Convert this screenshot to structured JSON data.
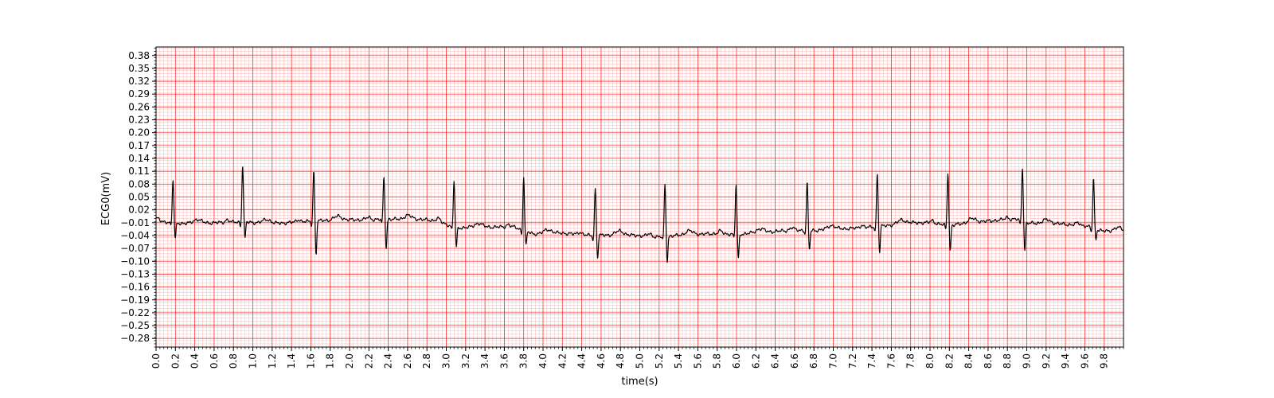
{
  "chart_data": {
    "type": "line",
    "xlabel": "time(s)",
    "ylabel": "ECG0(mV)",
    "xlim": [
      0.0,
      10.0
    ],
    "ylim": [
      -0.3,
      0.4
    ],
    "x_ticks": [
      "0.0",
      "0.2",
      "0.4",
      "0.6",
      "0.8",
      "1.0",
      "1.2",
      "1.4",
      "1.6",
      "1.8",
      "2.0",
      "2.2",
      "2.4",
      "2.6",
      "2.8",
      "3.0",
      "3.2",
      "3.4",
      "3.6",
      "3.8",
      "4.0",
      "4.2",
      "4.4",
      "4.6",
      "4.8",
      "5.0",
      "5.2",
      "5.4",
      "5.6",
      "5.8",
      "6.0",
      "6.2",
      "6.4",
      "6.6",
      "6.8",
      "7.0",
      "7.2",
      "7.4",
      "7.6",
      "7.8",
      "8.0",
      "8.2",
      "8.4",
      "8.6",
      "8.8",
      "9.0",
      "9.2",
      "9.4",
      "9.6",
      "9.8"
    ],
    "y_ticks": [
      "0.38",
      "0.35",
      "0.32",
      "0.29",
      "0.26",
      "0.23",
      "0.20",
      "0.17",
      "0.14",
      "0.11",
      "0.08",
      "0.05",
      "0.02",
      "−0.01",
      "−0.04",
      "−0.07",
      "−0.10",
      "−0.13",
      "−0.16",
      "−0.19",
      "−0.22",
      "−0.25",
      "−0.28"
    ],
    "grid": {
      "major_x_step_s": 0.2,
      "minor_x_step_s": 0.04,
      "major_y_step_mV": 0.03,
      "minor_y_step_mV": 0.0075,
      "color": "#ff0000"
    },
    "sampling_rate_hz": 250,
    "series": [
      {
        "color": "#000000",
        "beats": [
          {
            "t": 0.175,
            "amp": 0.098,
            "s": -0.038
          },
          {
            "t": 0.895,
            "amp": 0.133,
            "s": -0.04
          },
          {
            "t": 1.63,
            "amp": 0.118,
            "s": -0.078
          },
          {
            "t": 2.355,
            "amp": 0.097,
            "s": -0.068
          },
          {
            "t": 3.08,
            "amp": 0.108,
            "s": -0.045
          },
          {
            "t": 3.8,
            "amp": 0.125,
            "s": -0.035
          },
          {
            "t": 4.54,
            "amp": 0.11,
            "s": -0.052
          },
          {
            "t": 5.26,
            "amp": 0.12,
            "s": -0.058
          },
          {
            "t": 5.995,
            "amp": 0.115,
            "s": -0.058
          },
          {
            "t": 6.73,
            "amp": 0.11,
            "s": -0.045
          },
          {
            "t": 7.455,
            "amp": 0.125,
            "s": -0.06
          },
          {
            "t": 8.185,
            "amp": 0.125,
            "s": -0.06
          },
          {
            "t": 8.955,
            "amp": 0.128,
            "s": -0.065
          },
          {
            "t": 9.69,
            "amp": 0.118,
            "s": -0.025
          }
        ],
        "baseline_knots": [
          [
            0.0,
            -0.006
          ],
          [
            0.3,
            -0.012
          ],
          [
            0.6,
            -0.01
          ],
          [
            0.9,
            -0.008
          ],
          [
            1.2,
            -0.012
          ],
          [
            1.5,
            -0.008
          ],
          [
            1.8,
            -0.004
          ],
          [
            2.1,
            -0.003
          ],
          [
            2.4,
            -0.002
          ],
          [
            2.7,
            -0.002
          ],
          [
            2.9,
            -0.005
          ],
          [
            3.1,
            -0.022
          ],
          [
            3.4,
            -0.02
          ],
          [
            3.7,
            -0.02
          ],
          [
            3.9,
            -0.036
          ],
          [
            4.2,
            -0.034
          ],
          [
            4.5,
            -0.04
          ],
          [
            4.8,
            -0.038
          ],
          [
            5.0,
            -0.04
          ],
          [
            5.2,
            -0.043
          ],
          [
            5.5,
            -0.038
          ],
          [
            5.8,
            -0.035
          ],
          [
            6.0,
            -0.037
          ],
          [
            6.3,
            -0.032
          ],
          [
            6.6,
            -0.027
          ],
          [
            6.8,
            -0.028
          ],
          [
            7.0,
            -0.025
          ],
          [
            7.3,
            -0.022
          ],
          [
            7.5,
            -0.018
          ],
          [
            7.8,
            -0.01
          ],
          [
            8.0,
            -0.01
          ],
          [
            8.2,
            -0.017
          ],
          [
            8.4,
            -0.01
          ],
          [
            8.7,
            -0.004
          ],
          [
            8.9,
            -0.002
          ],
          [
            9.0,
            -0.011
          ],
          [
            9.3,
            -0.012
          ],
          [
            9.6,
            -0.017
          ],
          [
            9.8,
            -0.03
          ],
          [
            10.0,
            -0.03
          ]
        ]
      }
    ]
  }
}
